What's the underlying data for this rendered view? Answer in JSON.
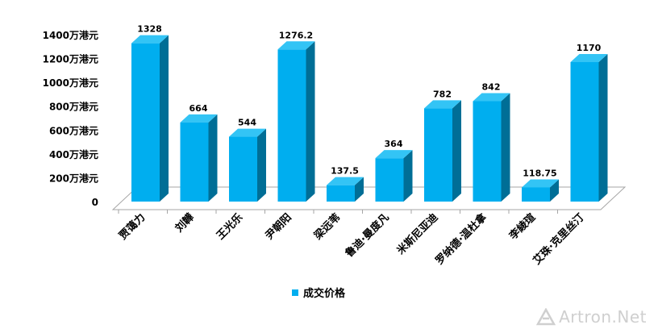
{
  "chart_data": {
    "type": "bar",
    "categories": [
      "贾蔼力",
      "刘韡",
      "王光乐",
      "尹朝阳",
      "梁远苇",
      "鲁迪·曼度凡",
      "米斯尼亚迪",
      "罗纳德·温杜拿",
      "李綾瑄",
      "艾珠·克里丝汀"
    ],
    "series": [
      {
        "name": "成交价格",
        "values": [
          1328,
          664,
          544,
          1276.2,
          137.5,
          364,
          782,
          842,
          118.75,
          1170
        ]
      }
    ],
    "data_labels": [
      "1328",
      "664",
      "544",
      "1276.2",
      "137.5",
      "364",
      "782",
      "842",
      "118.75",
      "1170"
    ],
    "ylim": [
      0,
      1400
    ],
    "yticks": [
      0,
      200,
      400,
      600,
      800,
      1000,
      1200,
      1400
    ],
    "ytick_labels": [
      "0",
      "200万港元",
      "400万港元",
      "600万港元",
      "800万港元",
      "1000万港元",
      "1200万港元",
      "1400万港元"
    ],
    "legend_position": "bottom",
    "grid": false,
    "colors": {
      "front": "#00AEEF",
      "side": "#006E96",
      "top": "#33C4F5"
    }
  },
  "watermark": {
    "text": "Artron.Net"
  }
}
